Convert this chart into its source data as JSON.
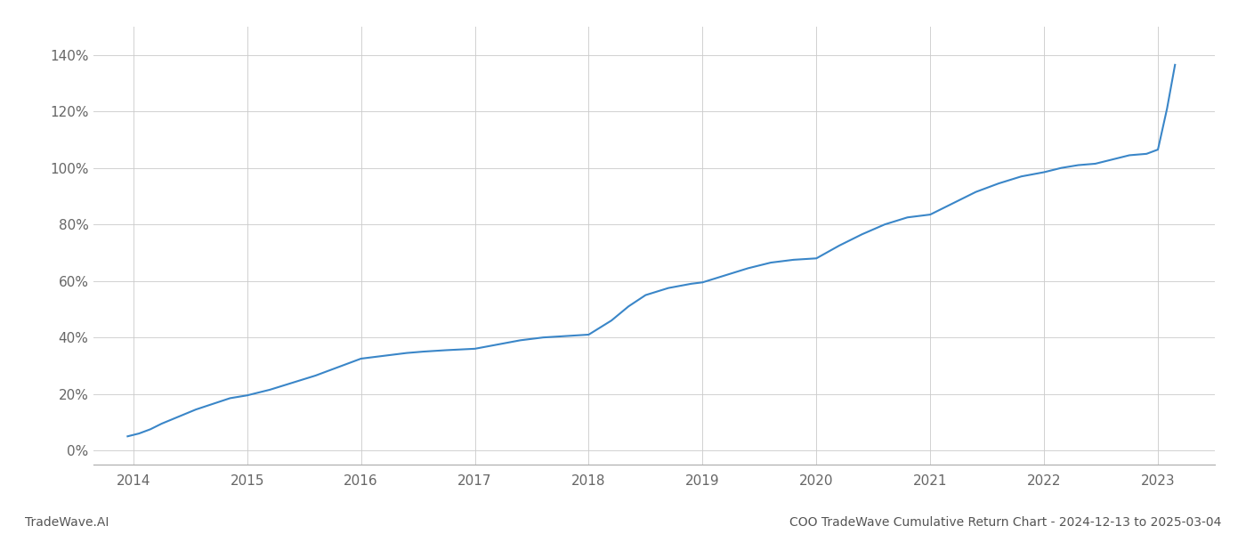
{
  "title": "COO TradeWave Cumulative Return Chart - 2024-12-13 to 2025-03-04",
  "watermark_left": "TradeWave.AI",
  "line_color": "#3a86c8",
  "line_width": 1.5,
  "background_color": "#ffffff",
  "grid_color": "#cccccc",
  "ylim": [
    -5,
    150
  ],
  "yticks": [
    0,
    20,
    40,
    60,
    80,
    100,
    120,
    140
  ],
  "x_years": [
    2014,
    2015,
    2016,
    2017,
    2018,
    2019,
    2020,
    2021,
    2022,
    2023
  ],
  "xlim_left": 2013.65,
  "xlim_right": 2023.5,
  "data_x": [
    2013.95,
    2014.05,
    2014.15,
    2014.25,
    2014.4,
    2014.55,
    2014.7,
    2014.85,
    2015.0,
    2015.2,
    2015.4,
    2015.6,
    2015.8,
    2016.0,
    2016.2,
    2016.4,
    2016.55,
    2016.75,
    2017.0,
    2017.2,
    2017.4,
    2017.6,
    2017.8,
    2018.0,
    2018.2,
    2018.35,
    2018.5,
    2018.7,
    2018.9,
    2019.0,
    2019.2,
    2019.4,
    2019.6,
    2019.8,
    2020.0,
    2020.2,
    2020.4,
    2020.6,
    2020.8,
    2021.0,
    2021.2,
    2021.4,
    2021.6,
    2021.8,
    2022.0,
    2022.15,
    2022.3,
    2022.45,
    2022.6,
    2022.75,
    2022.9,
    2023.0,
    2023.08,
    2023.15
  ],
  "data_y": [
    5.0,
    6.0,
    7.5,
    9.5,
    12.0,
    14.5,
    16.5,
    18.5,
    19.5,
    21.5,
    24.0,
    26.5,
    29.5,
    32.5,
    33.5,
    34.5,
    35.0,
    35.5,
    36.0,
    37.5,
    39.0,
    40.0,
    40.5,
    41.0,
    46.0,
    51.0,
    55.0,
    57.5,
    59.0,
    59.5,
    62.0,
    64.5,
    66.5,
    67.5,
    68.0,
    72.5,
    76.5,
    80.0,
    82.5,
    83.5,
    87.5,
    91.5,
    94.5,
    97.0,
    98.5,
    100.0,
    101.0,
    101.5,
    103.0,
    104.5,
    105.0,
    106.5,
    121.0,
    136.5
  ]
}
